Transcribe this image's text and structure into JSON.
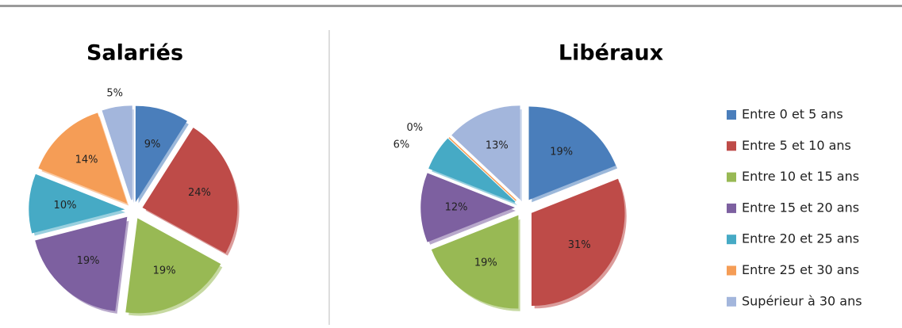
{
  "chart_data": [
    {
      "type": "pie",
      "title": "Salariés",
      "categories": [
        "Entre 0 et 5 ans",
        "Entre 5 et 10 ans",
        "Entre 10 et 15 ans",
        "Entre 15 et 20 ans",
        "Entre 20 et 25 ans",
        "Entre 25 et 30 ans",
        "Supérieur à 30 ans"
      ],
      "values": [
        9,
        24,
        19,
        19,
        10,
        14,
        5
      ],
      "value_labels": [
        "9%",
        "24%",
        "19%",
        "19%",
        "10%",
        "14%",
        "5%"
      ],
      "colors": [
        "#4a7ebb",
        "#be4b48",
        "#98b954",
        "#7d60a0",
        "#46aac5",
        "#f59d56",
        "#a3b6dc"
      ]
    },
    {
      "type": "pie",
      "title": "Libéraux",
      "categories": [
        "Entre 0 et 5 ans",
        "Entre 5 et 10 ans",
        "Entre 10 et 15 ans",
        "Entre 15 et 20 ans",
        "Entre 20 et 25 ans",
        "Entre 25 et 30 ans",
        "Supérieur à 30 ans"
      ],
      "values": [
        19,
        31,
        19,
        12,
        6,
        0,
        13
      ],
      "value_labels": [
        "19%",
        "31%",
        "19%",
        "12%",
        "6%",
        "0%",
        "13%"
      ],
      "colors": [
        "#4a7ebb",
        "#be4b48",
        "#98b954",
        "#7d60a0",
        "#46aac5",
        "#f59d56",
        "#a3b6dc"
      ],
      "legend": "right"
    }
  ]
}
